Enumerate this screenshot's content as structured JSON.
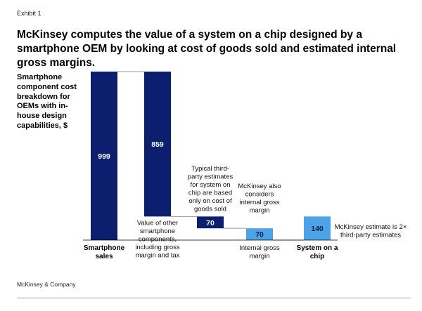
{
  "exhibit_label": "Exhibit 1",
  "headline": "McKinsey computes the value of a system on a chip designed by a smartphone OEM by looking at cost of goods sold and estimated internal gross margins.",
  "footer": "McKinsey & Company",
  "colors": {
    "dark_bar": "#0b1f6e",
    "light_bar": "#4da3e8",
    "connector": "#9a9a9a",
    "bar_text_dark": "#ffffff",
    "bar_text_light": "#0b1f3a"
  },
  "chart_data": {
    "type": "bar",
    "subtype": "waterfall",
    "ylabel": "Smartphone component cost breakdown for OEMs with in-house design capabilities, $",
    "categories": [
      "Smartphone sales",
      "Value of other smartphone components, including gross margin and tax",
      "Typical third-party estimates for system on chip are based only on cost of goods sold",
      "Internal gross margin",
      "System on a chip"
    ],
    "values": [
      999,
      859,
      70,
      70,
      140
    ],
    "value_labels": [
      "999",
      "859",
      "70",
      "70",
      "140"
    ],
    "bar_types": [
      "total",
      "decrease",
      "decrease",
      "decrease",
      "total"
    ],
    "axis_labels": [
      "Smartphone sales",
      "",
      "",
      "",
      "System on a chip"
    ],
    "notes_below": [
      "",
      "Value of other smartphone components, including gross margin and tax",
      "",
      "Internal gross margin",
      ""
    ],
    "notes_above": [
      "",
      "",
      "Typical third-party estimates for system on chip are based only on cost of goods sold",
      "McKinsey also considers internal gross margin",
      ""
    ],
    "annotation": "McKinsey estimate is 2× third-party estimates",
    "ylim": [
      0,
      999
    ],
    "grid": false
  }
}
